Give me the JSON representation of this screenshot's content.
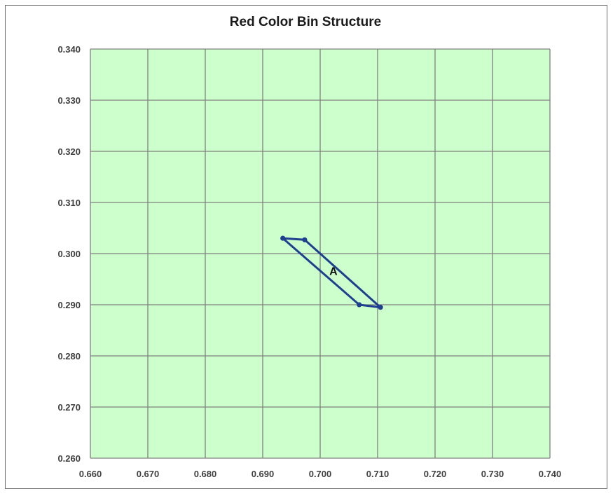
{
  "chart_data": {
    "type": "scatter",
    "title": "Red Color Bin Structure",
    "xlabel": "",
    "ylabel": "",
    "xlim": [
      0.66,
      0.74
    ],
    "ylim": [
      0.26,
      0.34
    ],
    "x_ticks": [
      "0.660",
      "0.670",
      "0.680",
      "0.690",
      "0.700",
      "0.710",
      "0.720",
      "0.730",
      "0.740"
    ],
    "y_ticks": [
      "0.260",
      "0.270",
      "0.280",
      "0.290",
      "0.300",
      "0.310",
      "0.320",
      "0.330",
      "0.340"
    ],
    "grid": true,
    "plot_background": "#ccffcc",
    "grid_color": "#808080",
    "series": [
      {
        "name": "A",
        "color": "#1f3f8f",
        "closed": true,
        "points": [
          {
            "x": 0.6935,
            "y": 0.303
          },
          {
            "x": 0.6973,
            "y": 0.3027
          },
          {
            "x": 0.7105,
            "y": 0.2895
          },
          {
            "x": 0.7068,
            "y": 0.29
          }
        ]
      }
    ],
    "annotations": [
      {
        "text": "A",
        "x": 0.7023,
        "y": 0.2958
      }
    ]
  }
}
